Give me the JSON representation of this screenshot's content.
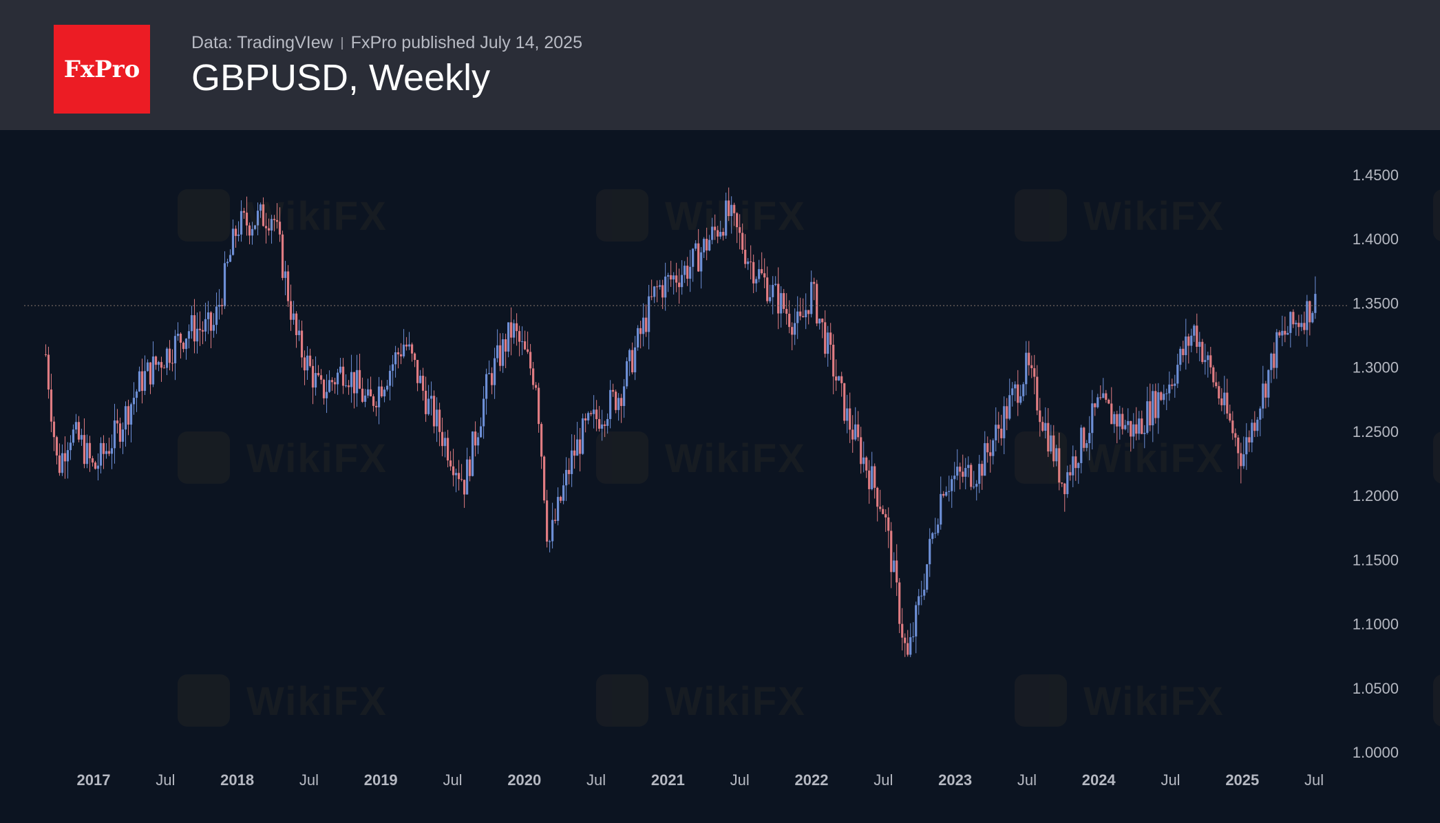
{
  "header": {
    "logo_text": "FxPro",
    "source": "Data: TradingVIew",
    "publisher": "FxPro published July 14, 2025",
    "title": "GBPUSD, Weekly"
  },
  "watermark": {
    "text": "WikiFX"
  },
  "colors": {
    "background": "#0c1421",
    "header_bg": "#2a2d37",
    "logo_bg": "#ec1c24",
    "up": "#6d8fd6",
    "down": "#e07c82",
    "axis_text": "#b6b9c2",
    "current_line": "#8a7a70"
  },
  "chart_data": {
    "type": "candlestick",
    "title": "GBPUSD, Weekly",
    "current_price": 1.348,
    "y_ticks": [
      "1.4500",
      "1.4000",
      "1.3500",
      "1.3000",
      "1.2500",
      "1.2000",
      "1.1500",
      "1.1000",
      "1.0500",
      "1.0000"
    ],
    "ylim": [
      1.0,
      1.45
    ],
    "x_ticks": [
      "2017",
      "Jul",
      "2018",
      "Jul",
      "2019",
      "Jul",
      "2020",
      "Jul",
      "2021",
      "Jul",
      "2022",
      "Jul",
      "2023",
      "Jul",
      "2024",
      "Jul",
      "2025",
      "Jul"
    ],
    "x_range": [
      "2016-09",
      "2025-07"
    ],
    "price_path": [
      [
        "2016-09",
        1.31
      ],
      [
        "2016-10",
        1.22
      ],
      [
        "2016-11",
        1.25
      ],
      [
        "2016-12",
        1.24
      ],
      [
        "2017-01",
        1.22
      ],
      [
        "2017-03",
        1.25
      ],
      [
        "2017-05",
        1.29
      ],
      [
        "2017-07",
        1.31
      ],
      [
        "2017-09",
        1.33
      ],
      [
        "2017-11",
        1.33
      ],
      [
        "2018-01",
        1.41
      ],
      [
        "2018-04",
        1.42
      ],
      [
        "2018-06",
        1.32
      ],
      [
        "2018-08",
        1.28
      ],
      [
        "2018-10",
        1.3
      ],
      [
        "2018-12",
        1.27
      ],
      [
        "2019-03",
        1.32
      ],
      [
        "2019-05",
        1.27
      ],
      [
        "2019-08",
        1.21
      ],
      [
        "2019-10",
        1.29
      ],
      [
        "2019-12",
        1.33
      ],
      [
        "2020-02",
        1.29
      ],
      [
        "2020-03",
        1.16
      ],
      [
        "2020-05",
        1.23
      ],
      [
        "2020-06",
        1.25
      ],
      [
        "2020-09",
        1.28
      ],
      [
        "2020-12",
        1.36
      ],
      [
        "2021-03",
        1.38
      ],
      [
        "2021-06",
        1.42
      ],
      [
        "2021-08",
        1.38
      ],
      [
        "2021-12",
        1.33
      ],
      [
        "2022-01",
        1.36
      ],
      [
        "2022-04",
        1.26
      ],
      [
        "2022-07",
        1.19
      ],
      [
        "2022-09",
        1.07
      ],
      [
        "2022-12",
        1.21
      ],
      [
        "2023-03",
        1.22
      ],
      [
        "2023-07",
        1.3
      ],
      [
        "2023-10",
        1.21
      ],
      [
        "2024-01",
        1.27
      ],
      [
        "2024-04",
        1.25
      ],
      [
        "2024-07",
        1.29
      ],
      [
        "2024-09",
        1.33
      ],
      [
        "2025-01",
        1.23
      ],
      [
        "2025-04",
        1.32
      ],
      [
        "2025-07",
        1.35
      ]
    ]
  }
}
